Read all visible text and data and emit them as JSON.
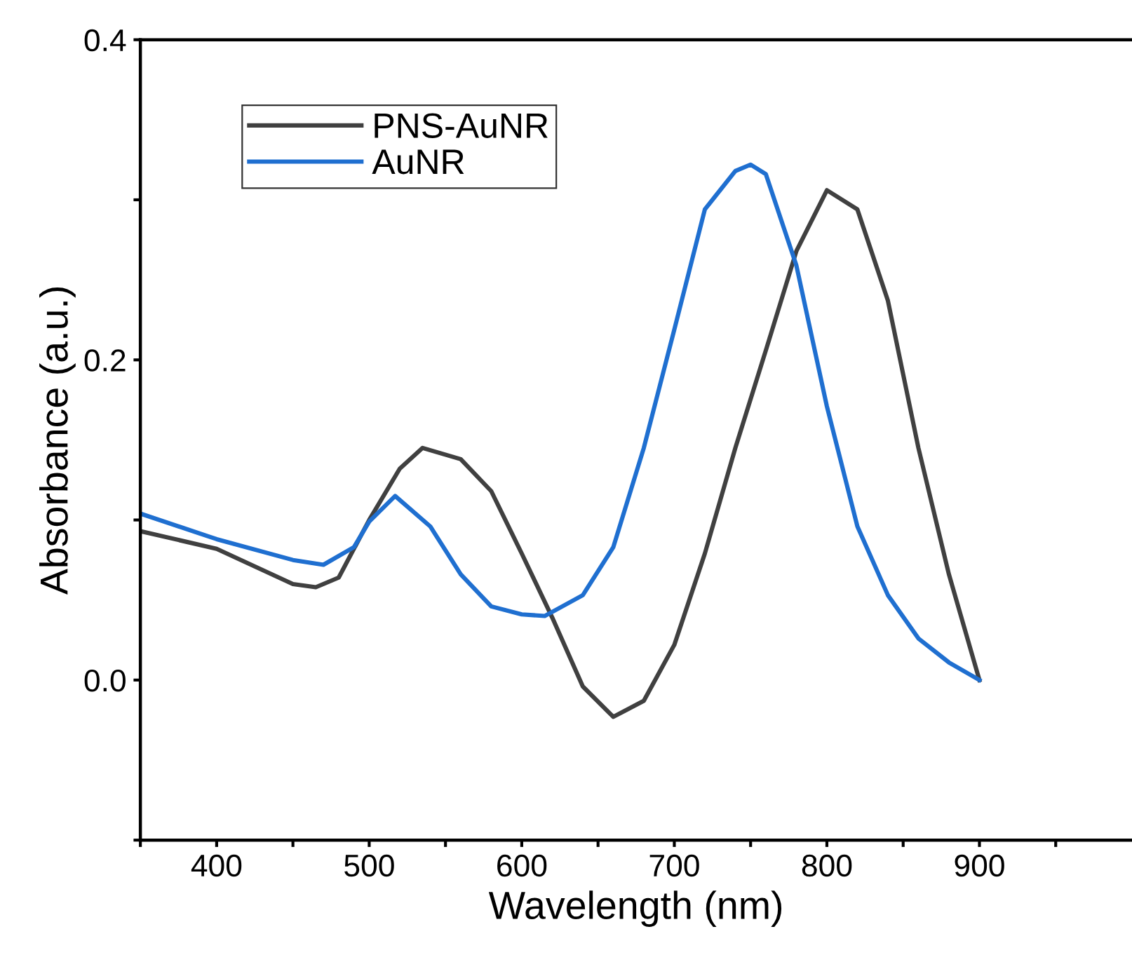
{
  "chart_data": {
    "type": "line",
    "xlabel": "Wavelength (nm)",
    "ylabel": "Absorbance (a.u.)",
    "xlim": [
      350,
      1000
    ],
    "xticks": [
      {
        "value": 350,
        "label": null
      },
      400,
      {
        "value": 450,
        "label": null
      },
      500,
      {
        "value": 550,
        "label": null
      },
      600,
      {
        "value": 650,
        "label": null
      },
      700,
      {
        "value": 750,
        "label": null
      },
      800,
      {
        "value": 850,
        "label": null
      },
      900,
      {
        "value": 950,
        "label": null
      }
    ],
    "ylim": [
      -0.1,
      0.4
    ],
    "yticks": [
      {
        "value": -0.1,
        "label": null
      },
      {
        "value": 0.0,
        "label": "0.0"
      },
      {
        "value": 0.1,
        "label": null
      },
      0.2,
      {
        "value": 0.3,
        "label": null
      },
      0.4
    ],
    "grid": false,
    "legend": "top left",
    "marker": "none",
    "line_style": "solid",
    "series": [
      {
        "name": "PNS-AuNR",
        "color": "#404040",
        "x": [
          350,
          400,
          450,
          465,
          480,
          500,
          520,
          535,
          560,
          580,
          600,
          620,
          640,
          660,
          680,
          700,
          720,
          740,
          760,
          780,
          800,
          820,
          840,
          860,
          880,
          900
        ],
        "values": [
          0.093,
          0.082,
          0.06,
          0.058,
          0.064,
          0.1,
          0.132,
          0.145,
          0.138,
          0.118,
          0.079,
          0.039,
          -0.004,
          -0.023,
          -0.013,
          0.022,
          0.079,
          0.145,
          0.206,
          0.268,
          0.306,
          0.294,
          0.237,
          0.145,
          0.066,
          0.0
        ]
      },
      {
        "name": "AuNR",
        "color": "#1f6fd0",
        "x": [
          350,
          400,
          450,
          470,
          490,
          500,
          517,
          540,
          560,
          580,
          600,
          615,
          640,
          660,
          680,
          700,
          720,
          740,
          750,
          760,
          780,
          800,
          820,
          840,
          860,
          880,
          900
        ],
        "values": [
          0.104,
          0.088,
          0.075,
          0.072,
          0.083,
          0.099,
          0.115,
          0.096,
          0.066,
          0.046,
          0.041,
          0.04,
          0.053,
          0.083,
          0.145,
          0.219,
          0.294,
          0.318,
          0.322,
          0.316,
          0.259,
          0.171,
          0.096,
          0.053,
          0.026,
          0.011,
          0.0
        ]
      }
    ]
  }
}
